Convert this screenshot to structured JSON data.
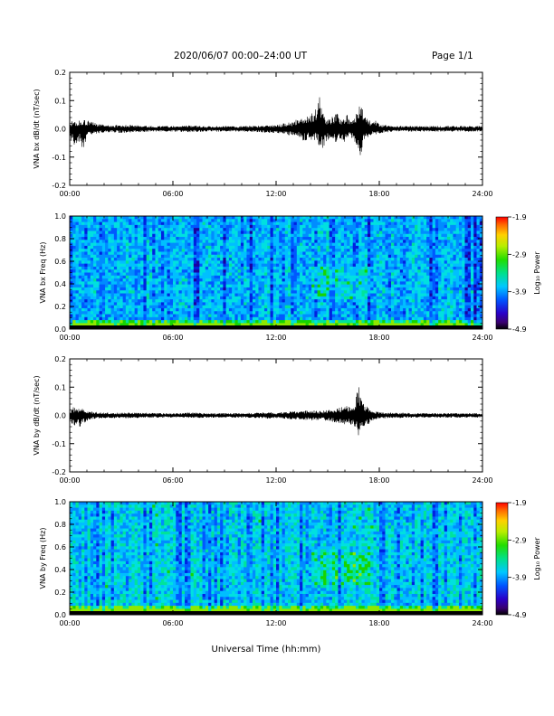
{
  "header": {
    "title": "2020/06/07  00:00–24:00 UT",
    "page": "Page 1/1"
  },
  "xaxis": {
    "ticks": [
      "00:00",
      "06:00",
      "12:00",
      "18:00",
      "24:00"
    ],
    "title": "Universal Time (hh:mm)",
    "range_hours": [
      0,
      24
    ]
  },
  "colorbar": {
    "label": "Log₁₀ Power",
    "ticks": [
      "-1.9",
      "-2.9",
      "-3.9",
      "-4.9"
    ],
    "range": [
      -4.9,
      -1.9
    ]
  },
  "chart_data": [
    {
      "type": "line",
      "ylabel": "VNA bx dB/dt (nT/sec)",
      "yticks": [
        "0.2",
        "0.1",
        "0.0",
        "-0.1",
        "-0.2"
      ],
      "ylim": [
        -0.2,
        0.2
      ],
      "xlim": [
        0,
        24
      ],
      "series": [
        {
          "envelope": {
            "x": [
              0,
              0.2,
              0.4,
              0.6,
              0.8,
              1.0,
              1.2,
              1.5,
              2,
              2.5,
              3,
              4,
              5,
              6,
              7,
              8,
              9,
              10,
              11,
              11.5,
              12,
              12.5,
              13,
              13.3,
              13.6,
              13.9,
              14.1,
              14.3,
              14.5,
              14.7,
              14.9,
              15.1,
              15.3,
              15.5,
              15.7,
              15.9,
              16.1,
              16.3,
              16.5,
              16.7,
              16.9,
              17.1,
              17.3,
              17.5,
              17.8,
              18.1,
              18.5,
              19,
              20,
              21,
              22,
              23,
              24
            ],
            "max": [
              0.02,
              0.03,
              0.025,
              0.03,
              0.035,
              0.03,
              0.03,
              0.02,
              0.015,
              0.012,
              0.015,
              0.012,
              0.01,
              0.01,
              0.012,
              0.01,
              0.01,
              0.01,
              0.012,
              0.015,
              0.015,
              0.02,
              0.025,
              0.04,
              0.05,
              0.045,
              0.06,
              0.08,
              0.12,
              0.06,
              0.04,
              0.035,
              0.05,
              0.06,
              0.04,
              0.05,
              0.055,
              0.035,
              0.03,
              0.06,
              0.1,
              0.05,
              0.04,
              0.025,
              0.03,
              0.015,
              0.012,
              0.01,
              0.01,
              0.01,
              0.01,
              0.01,
              0.01
            ],
            "min": [
              -0.02,
              -0.06,
              -0.05,
              -0.05,
              -0.08,
              -0.03,
              -0.02,
              -0.02,
              -0.015,
              -0.012,
              -0.015,
              -0.012,
              -0.01,
              -0.01,
              -0.012,
              -0.01,
              -0.01,
              -0.01,
              -0.012,
              -0.015,
              -0.015,
              -0.02,
              -0.025,
              -0.03,
              -0.045,
              -0.035,
              -0.05,
              -0.04,
              -0.06,
              -0.07,
              -0.05,
              -0.035,
              -0.04,
              -0.05,
              -0.035,
              -0.045,
              -0.05,
              -0.025,
              -0.04,
              -0.06,
              -0.1,
              -0.055,
              -0.04,
              -0.025,
              -0.02,
              -0.015,
              -0.012,
              -0.01,
              -0.01,
              -0.01,
              -0.01,
              -0.01,
              -0.01
            ]
          }
        }
      ]
    },
    {
      "type": "heatmap",
      "ylabel": "VNA bx Freq (Hz)",
      "yticks": [
        "1.0",
        "0.8",
        "0.6",
        "0.4",
        "0.2",
        "0.0"
      ],
      "ylim": [
        0,
        1.0
      ],
      "xlim": [
        0,
        24
      ],
      "z_range": [
        -4.9,
        -1.9
      ]
    },
    {
      "type": "line",
      "ylabel": "VNA by dB/dt (nT/sec)",
      "yticks": [
        "0.2",
        "0.1",
        "0.0",
        "-0.1",
        "-0.2"
      ],
      "ylim": [
        -0.2,
        0.2
      ],
      "xlim": [
        0,
        24
      ],
      "series": [
        {
          "envelope": {
            "x": [
              0,
              0.2,
              0.4,
              0.6,
              0.8,
              1.0,
              1.2,
              1.5,
              2,
              3,
              4,
              5,
              6,
              7,
              8,
              9,
              10,
              11,
              11.5,
              12,
              12.5,
              13,
              13.5,
              14,
              14.5,
              15,
              15.5,
              16,
              16.3,
              16.6,
              16.8,
              17.0,
              17.2,
              17.4,
              17.7,
              18,
              18.5,
              19,
              20,
              21,
              22,
              23,
              24
            ],
            "max": [
              0.015,
              0.03,
              0.025,
              0.03,
              0.02,
              0.015,
              0.015,
              0.012,
              0.01,
              0.01,
              0.01,
              0.008,
              0.008,
              0.01,
              0.008,
              0.008,
              0.008,
              0.01,
              0.012,
              0.01,
              0.012,
              0.015,
              0.015,
              0.02,
              0.015,
              0.02,
              0.025,
              0.035,
              0.03,
              0.045,
              0.12,
              0.05,
              0.035,
              0.03,
              0.015,
              0.012,
              0.01,
              0.01,
              0.008,
              0.008,
              0.008,
              0.008,
              0.008
            ],
            "min": [
              -0.015,
              -0.04,
              -0.035,
              -0.04,
              -0.03,
              -0.02,
              -0.015,
              -0.012,
              -0.01,
              -0.01,
              -0.01,
              -0.008,
              -0.008,
              -0.01,
              -0.008,
              -0.008,
              -0.008,
              -0.01,
              -0.012,
              -0.01,
              -0.012,
              -0.015,
              -0.015,
              -0.02,
              -0.015,
              -0.02,
              -0.025,
              -0.035,
              -0.03,
              -0.05,
              -0.08,
              -0.05,
              -0.035,
              -0.03,
              -0.015,
              -0.012,
              -0.01,
              -0.01,
              -0.008,
              -0.008,
              -0.008,
              -0.008,
              -0.008
            ]
          }
        }
      ]
    },
    {
      "type": "heatmap",
      "ylabel": "VNA by Freq (Hz)",
      "yticks": [
        "1.0",
        "0.8",
        "0.6",
        "0.4",
        "0.2",
        "0.0"
      ],
      "ylim": [
        0,
        1.0
      ],
      "xlim": [
        0,
        24
      ],
      "z_range": [
        -4.9,
        -1.9
      ]
    }
  ]
}
